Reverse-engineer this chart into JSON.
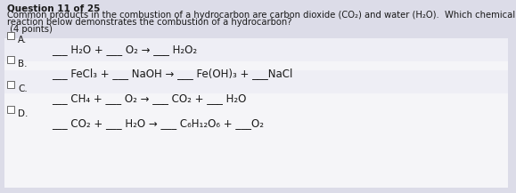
{
  "title": "Question 11 of 25",
  "body_line1": "Common products in the combustion of a hydrocarbon are carbon dioxide (CO₂) and water (H₂O).  Which chemical",
  "body_line2": "reaction below demonstrates the combustion of a hydrocarbon?",
  "points": " (4 points)",
  "bg_color": "#dcdce8",
  "box_color": "#ffffff",
  "text_color": "#1a1a1a",
  "options_text": [
    "___ H₂O + ___ O₂ → ___ H₂O₂",
    "___ FeCl₃ + ___ NaOH → ___ Fe(OH)₃ + ___NaCl",
    "___ CH₄ + ___ O₂ → ___ CO₂ + ___ H₂O",
    "___ CO₂ + ___ H₂O → ___ C₆H₁₂O₆ + ___O₂"
  ],
  "labels": [
    "A.",
    "B.",
    "C.",
    "D."
  ],
  "font_size_title": 7.5,
  "font_size_body": 7.2,
  "font_size_options": 8.5,
  "font_size_label": 7.5
}
